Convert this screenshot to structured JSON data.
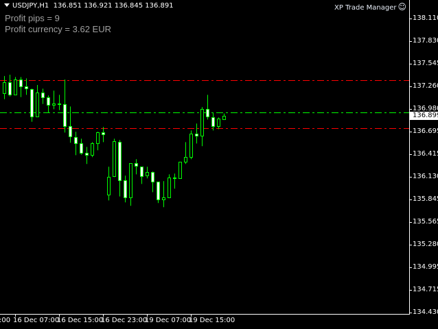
{
  "header": {
    "symbol": "USDJPY,H1",
    "ohlc": "136.851 136.921 136.845 136.891",
    "menu_icon": "triangle-down-icon"
  },
  "profit": {
    "pips": "Profit pips = 9",
    "currency": "Profit currency = 3.62 EUR"
  },
  "indicator": {
    "name": "XP Trade Manager",
    "icon": "smiley-icon"
  },
  "colors": {
    "background": "#000000",
    "candle": "#00ff00",
    "bear_body": "#ffffff",
    "axis": "#ffffff",
    "stop_line": "#ff0000",
    "entry_line": "#00ff00",
    "profit_text": "#a0a0a0"
  },
  "price_axis": {
    "labels": [
      "138.110",
      "137.830",
      "137.545",
      "137.260",
      "136.980",
      "136.695",
      "136.415",
      "136.130",
      "135.845",
      "135.565",
      "135.280",
      "134.995",
      "134.715",
      "134.430"
    ],
    "bid": "136.899"
  },
  "time_axis": {
    "labels": [
      ":00",
      "16 Dec 07:00",
      "16 Dec 15:00",
      "16 Dec 23:00",
      "19 Dec 07:00",
      "19 Dec 15:00"
    ]
  },
  "chart_data": {
    "type": "candlestick",
    "symbol": "USDJPY",
    "timeframe": "H1",
    "ylim": [
      134.43,
      138.11
    ],
    "lines": [
      {
        "kind": "stop",
        "color": "#ff0000",
        "price": 137.338
      },
      {
        "kind": "entry",
        "color": "#00ff00",
        "price": 136.932
      },
      {
        "kind": "stop",
        "color": "#ff0000",
        "price": 136.737
      }
    ],
    "candles": [
      [
        137.172,
        137.39,
        137.101,
        137.31
      ],
      [
        137.31,
        137.407,
        137.135,
        137.155
      ],
      [
        137.155,
        137.378,
        137.155,
        137.344
      ],
      [
        137.344,
        137.378,
        137.127,
        137.258
      ],
      [
        137.258,
        137.361,
        137.155,
        137.232
      ],
      [
        137.224,
        137.232,
        136.818,
        136.881
      ],
      [
        136.881,
        137.278,
        136.881,
        137.181
      ],
      [
        137.181,
        137.232,
        137.041,
        137.121
      ],
      [
        137.121,
        137.147,
        136.932,
        137.027
      ],
      [
        137.027,
        137.207,
        136.975,
        137.044
      ],
      [
        137.044,
        137.155,
        136.964,
        137.035
      ],
      [
        137.035,
        137.347,
        136.683,
        136.761
      ],
      [
        136.761,
        137.009,
        136.555,
        136.632
      ],
      [
        136.623,
        136.692,
        136.4,
        136.546
      ],
      [
        136.546,
        136.606,
        136.406,
        136.426
      ],
      [
        136.426,
        136.503,
        136.289,
        136.4
      ],
      [
        136.4,
        136.563,
        136.375,
        136.546
      ],
      [
        136.546,
        136.692,
        136.461,
        136.683
      ],
      [
        136.683,
        136.752,
        136.563,
        136.664
      ],
      [
        135.903,
        136.255,
        135.834,
        136.126
      ],
      [
        136.135,
        136.606,
        136.126,
        136.572
      ],
      [
        136.563,
        136.589,
        135.883,
        136.083
      ],
      [
        136.083,
        136.143,
        135.809,
        135.869
      ],
      [
        135.869,
        136.298,
        135.766,
        136.298
      ],
      [
        136.298,
        136.349,
        136.16,
        136.263
      ],
      [
        136.255,
        136.255,
        136.04,
        136.135
      ],
      [
        136.143,
        136.255,
        136.109,
        136.186
      ],
      [
        136.186,
        136.195,
        135.937,
        136.066
      ],
      [
        136.066,
        136.066,
        135.8,
        135.843
      ],
      [
        135.843,
        136.075,
        135.749,
        135.869
      ],
      [
        135.869,
        136.16,
        135.869,
        136.117
      ],
      [
        136.117,
        136.169,
        135.98,
        136.109
      ],
      [
        136.109,
        136.315,
        136.109,
        136.315
      ],
      [
        136.315,
        136.563,
        136.289,
        136.375
      ],
      [
        136.375,
        136.709,
        136.349,
        136.666
      ],
      [
        136.666,
        136.795,
        136.546,
        136.641
      ],
      [
        136.641,
        137.001,
        136.512,
        136.975
      ],
      [
        136.975,
        137.155,
        136.846,
        136.881
      ],
      [
        136.872,
        136.932,
        136.709,
        136.761
      ],
      [
        136.761,
        136.872,
        136.726,
        136.855
      ],
      [
        136.851,
        136.921,
        136.845,
        136.891
      ]
    ]
  }
}
